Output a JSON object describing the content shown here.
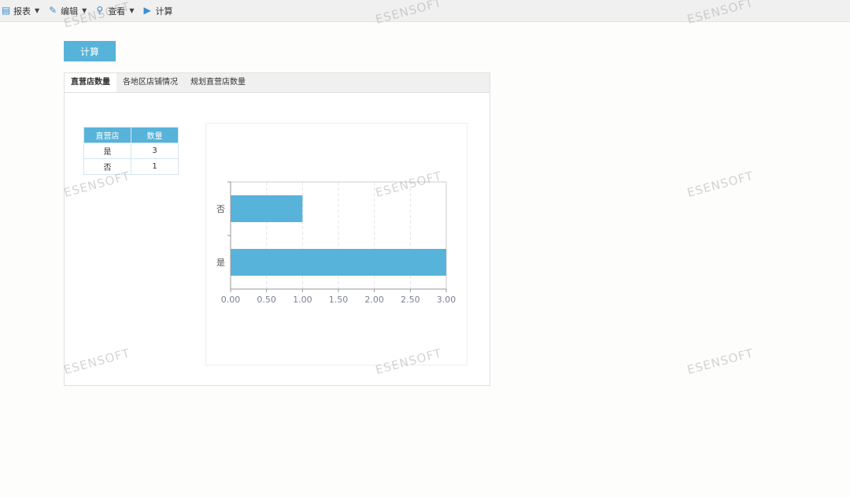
{
  "toolbar": {
    "items": [
      {
        "label": "报表",
        "icon": "report-icon"
      },
      {
        "label": "编辑",
        "icon": "pencil-icon"
      },
      {
        "label": "查看",
        "icon": "search-icon"
      },
      {
        "label": "计算",
        "icon": "play-icon"
      }
    ]
  },
  "calc_button": "计算",
  "tabs": [
    {
      "label": "直营店数量",
      "active": true
    },
    {
      "label": "各地区店铺情况"
    },
    {
      "label": "规划直营店数量"
    }
  ],
  "table": {
    "headers": [
      "直营店",
      "数量"
    ],
    "rows": [
      [
        "是",
        "3"
      ],
      [
        "否",
        "1"
      ]
    ]
  },
  "watermark": "ESENSOFT",
  "chart_data": {
    "type": "bar",
    "orientation": "horizontal",
    "categories": [
      "否",
      "是"
    ],
    "values": [
      1,
      3
    ],
    "xlim": [
      0,
      3
    ],
    "xticks": [
      "0.00",
      "0.50",
      "1.00",
      "1.50",
      "2.00",
      "2.50",
      "3.00"
    ],
    "grid": true,
    "color": "#57b3d9"
  }
}
